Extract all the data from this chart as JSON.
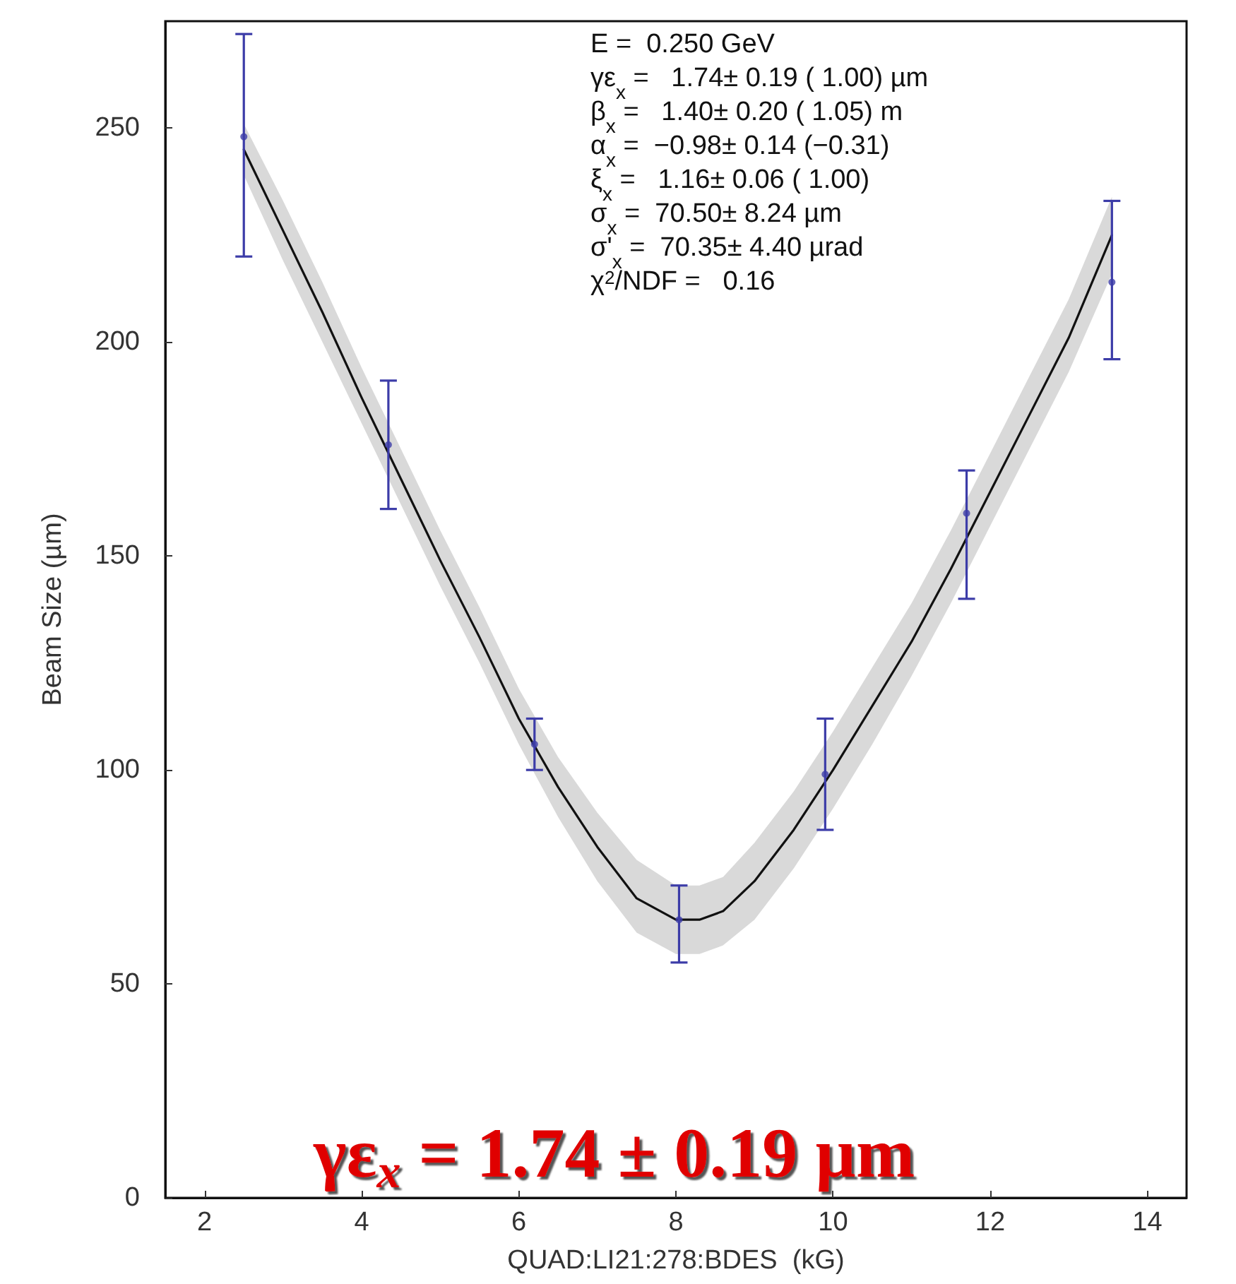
{
  "chart_data": {
    "type": "scatter",
    "xlabel": "QUAD:LI21:278:BDES  (kG)",
    "ylabel": "Beam Size (µm)",
    "xlim": [
      1.5,
      14.5
    ],
    "xticks": [
      2,
      4,
      6,
      8,
      10,
      12,
      14
    ],
    "ylim": [
      0,
      275
    ],
    "yticks": [
      0,
      50,
      100,
      150,
      200,
      250
    ],
    "grid": false,
    "marker": "circle",
    "series": [
      {
        "color": "#3c3ca8",
        "x": [
          2.5,
          4.34,
          6.2,
          8.04,
          9.9,
          11.7,
          13.55
        ],
        "values": [
          248,
          176,
          106,
          65,
          99,
          160,
          214
        ],
        "errors": [
          [
            220,
            272
          ],
          [
            161,
            191
          ],
          [
            100,
            112
          ],
          [
            55,
            73
          ],
          [
            86,
            112
          ],
          [
            140,
            170
          ],
          [
            196,
            233
          ]
        ]
      },
      {
        "type": "line",
        "color": "#111111",
        "marker": "none",
        "line_style": "solid",
        "x": [
          2.5,
          3,
          3.5,
          4,
          4.5,
          5,
          5.5,
          6,
          6.5,
          7,
          7.5,
          8,
          8.3,
          8.6,
          9,
          9.5,
          10,
          10.5,
          11,
          11.5,
          12,
          12.5,
          13,
          13.55
        ],
        "values": [
          245,
          226,
          207,
          187,
          168,
          149,
          131,
          112,
          96,
          82,
          70,
          65,
          65,
          67,
          74,
          86,
          100,
          115,
          130,
          147,
          165,
          183,
          201,
          225
        ],
        "lower": [
          239,
          219,
          200,
          181,
          162,
          143,
          125,
          106,
          89,
          74,
          62,
          57,
          57,
          59,
          65,
          77,
          91,
          106,
          122,
          139,
          157,
          175,
          193,
          216
        ],
        "upper": [
          251,
          233,
          214,
          194,
          175,
          156,
          138,
          119,
          103,
          90,
          79,
          73,
          73,
          75,
          83,
          95,
          109,
          124,
          139,
          156,
          174,
          192,
          210,
          234
        ]
      }
    ],
    "annotations": [
      "E =  0.250 GeV",
      "γε$_{x}$ =   1.74± 0.19 ( 1.00) µm",
      "β$_{x}$ =   1.40± 0.20 ( 1.05) m",
      "α$_{x}$ =  −0.98± 0.14 (−0.31)",
      "ξ$_{x}$ =   1.16± 0.06 ( 1.00)",
      "σ$_{x}$ =  70.50± 8.24 µm",
      "σ'$_{x}$ =  70.35± 4.40 µrad",
      "χ$^{2}$/NDF =   0.16",
      "γε$_{x}$ = 1.74 ± 0.19 µm"
    ]
  }
}
